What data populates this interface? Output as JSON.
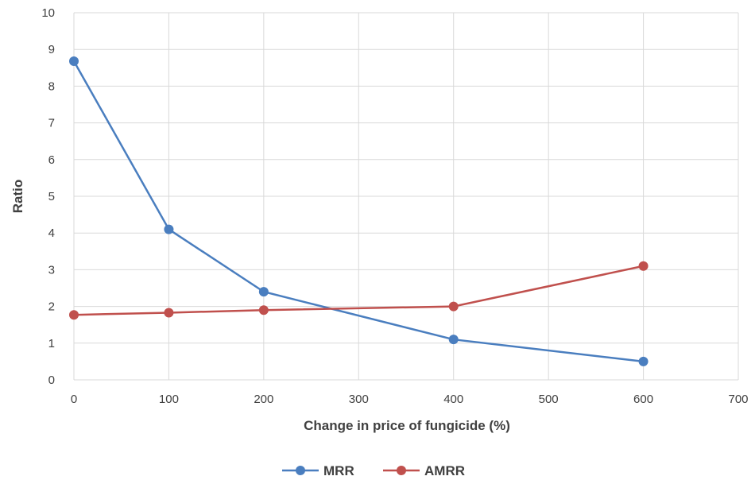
{
  "chart_data": {
    "type": "line",
    "title": "",
    "xlabel": "Change in price of fungicide (%)",
    "ylabel": "Ratio",
    "xlim": [
      0,
      700
    ],
    "ylim": [
      0,
      10
    ],
    "x_ticks": [
      0,
      100,
      200,
      300,
      400,
      500,
      600,
      700
    ],
    "y_ticks": [
      0,
      1,
      2,
      3,
      4,
      5,
      6,
      7,
      8,
      9,
      10
    ],
    "grid": true,
    "legend_position": "bottom",
    "series": [
      {
        "name": "MRR",
        "color": "#4a7ebf",
        "x": [
          0,
          100,
          200,
          400,
          600
        ],
        "y": [
          8.68,
          4.1,
          2.4,
          1.1,
          0.5
        ]
      },
      {
        "name": "AMRR",
        "color": "#c0504d",
        "x": [
          0,
          100,
          200,
          400,
          600
        ],
        "y": [
          1.77,
          1.83,
          1.9,
          2.0,
          3.1
        ]
      }
    ]
  }
}
